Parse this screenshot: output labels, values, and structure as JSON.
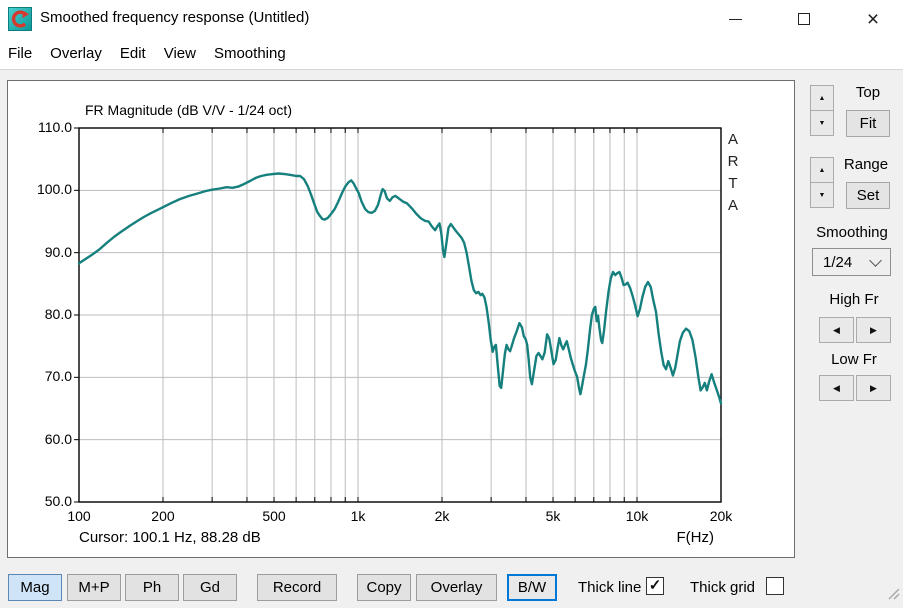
{
  "window": {
    "title": "Smoothed frequency response (Untitled)",
    "icon": "arta-app-icon"
  },
  "menu": {
    "items": [
      "File",
      "Overlay",
      "Edit",
      "View",
      "Smoothing"
    ]
  },
  "chart": {
    "title": "FR Magnitude (dB V/V - 1/24 oct)",
    "watermark": [
      "A",
      "R",
      "T",
      "A"
    ],
    "cursor_status": "Cursor: 100.1 Hz, 88.28 dB",
    "x_axis_label": "F(Hz)",
    "y_tick_labels": [
      "110.0",
      "100.0",
      "90.0",
      "80.0",
      "70.0",
      "60.0",
      "50.0"
    ],
    "x_tick_labels": [
      {
        "freq": 100,
        "label": "100"
      },
      {
        "freq": 200,
        "label": "200"
      },
      {
        "freq": 500,
        "label": "500"
      },
      {
        "freq": 1000,
        "label": "1k"
      },
      {
        "freq": 2000,
        "label": "2k"
      },
      {
        "freq": 5000,
        "label": "5k"
      },
      {
        "freq": 10000,
        "label": "10k"
      },
      {
        "freq": 20000,
        "label": "20k"
      }
    ]
  },
  "chart_data": {
    "type": "line",
    "title": "FR Magnitude (dB V/V - 1/24 oct)",
    "x_scale": "log",
    "xlim": [
      100,
      20000
    ],
    "ylim": [
      50,
      110
    ],
    "x_unit": "Hz",
    "y_unit": "dB",
    "grid": true,
    "x_gridlines": [
      200,
      300,
      400,
      500,
      600,
      700,
      800,
      900,
      1000,
      2000,
      3000,
      4000,
      5000,
      6000,
      7000,
      8000,
      9000,
      10000
    ],
    "y_gridlines": [
      60,
      70,
      80,
      90,
      100
    ],
    "series": [
      {
        "name": "FR magnitude",
        "color": "#15807d",
        "points": [
          [
            100,
            88.3
          ],
          [
            104,
            88.8
          ],
          [
            110,
            89.5
          ],
          [
            118,
            90.5
          ],
          [
            126,
            91.6
          ],
          [
            134,
            92.6
          ],
          [
            142,
            93.4
          ],
          [
            152,
            94.3
          ],
          [
            162,
            95.1
          ],
          [
            172,
            95.8
          ],
          [
            182,
            96.4
          ],
          [
            192,
            96.9
          ],
          [
            200,
            97.3
          ],
          [
            215,
            98.0
          ],
          [
            230,
            98.6
          ],
          [
            248,
            99.1
          ],
          [
            266,
            99.5
          ],
          [
            285,
            99.9
          ],
          [
            300,
            100.1
          ],
          [
            320,
            100.3
          ],
          [
            338,
            100.5
          ],
          [
            355,
            100.4
          ],
          [
            372,
            100.6
          ],
          [
            390,
            101.0
          ],
          [
            410,
            101.5
          ],
          [
            430,
            102.0
          ],
          [
            450,
            102.3
          ],
          [
            470,
            102.5
          ],
          [
            495,
            102.6
          ],
          [
            520,
            102.7
          ],
          [
            545,
            102.6
          ],
          [
            570,
            102.5
          ],
          [
            600,
            102.3
          ],
          [
            620,
            102.3
          ],
          [
            640,
            101.8
          ],
          [
            660,
            100.7
          ],
          [
            680,
            99.2
          ],
          [
            700,
            97.6
          ],
          [
            715,
            96.5
          ],
          [
            730,
            95.9
          ],
          [
            745,
            95.4
          ],
          [
            760,
            95.3
          ],
          [
            780,
            95.6
          ],
          [
            800,
            96.2
          ],
          [
            825,
            97.0
          ],
          [
            850,
            98.2
          ],
          [
            875,
            99.5
          ],
          [
            900,
            100.6
          ],
          [
            925,
            101.3
          ],
          [
            945,
            101.6
          ],
          [
            965,
            101.1
          ],
          [
            985,
            100.3
          ],
          [
            1005,
            99.6
          ],
          [
            1030,
            98.2
          ],
          [
            1060,
            97.0
          ],
          [
            1090,
            96.5
          ],
          [
            1120,
            96.4
          ],
          [
            1150,
            96.7
          ],
          [
            1180,
            97.7
          ],
          [
            1205,
            99.2
          ],
          [
            1225,
            100.2
          ],
          [
            1245,
            99.9
          ],
          [
            1270,
            98.7
          ],
          [
            1300,
            98.3
          ],
          [
            1330,
            98.9
          ],
          [
            1360,
            99.1
          ],
          [
            1400,
            98.7
          ],
          [
            1450,
            98.2
          ],
          [
            1500,
            97.9
          ],
          [
            1560,
            97.1
          ],
          [
            1620,
            96.2
          ],
          [
            1680,
            95.5
          ],
          [
            1740,
            95.1
          ],
          [
            1790,
            95.0
          ],
          [
            1840,
            94.2
          ],
          [
            1890,
            93.6
          ],
          [
            1930,
            94.3
          ],
          [
            1960,
            94.7
          ],
          [
            1990,
            93.0
          ],
          [
            2015,
            90.5
          ],
          [
            2040,
            89.3
          ],
          [
            2070,
            91.3
          ],
          [
            2110,
            94.0
          ],
          [
            2150,
            94.6
          ],
          [
            2200,
            94.0
          ],
          [
            2250,
            93.4
          ],
          [
            2300,
            92.9
          ],
          [
            2350,
            92.4
          ],
          [
            2400,
            91.6
          ],
          [
            2450,
            90.0
          ],
          [
            2500,
            87.8
          ],
          [
            2550,
            85.5
          ],
          [
            2600,
            84.0
          ],
          [
            2650,
            83.5
          ],
          [
            2700,
            83.7
          ],
          [
            2750,
            83.2
          ],
          [
            2790,
            83.4
          ],
          [
            2840,
            82.8
          ],
          [
            2890,
            81.2
          ],
          [
            2940,
            78.8
          ],
          [
            2990,
            76.0
          ],
          [
            3040,
            74.1
          ],
          [
            3080,
            74.9
          ],
          [
            3120,
            75.2
          ],
          [
            3170,
            71.8
          ],
          [
            3220,
            68.6
          ],
          [
            3260,
            68.3
          ],
          [
            3310,
            71.0
          ],
          [
            3360,
            73.8
          ],
          [
            3410,
            75.2
          ],
          [
            3460,
            74.5
          ],
          [
            3510,
            74.2
          ],
          [
            3560,
            75.1
          ],
          [
            3620,
            76.2
          ],
          [
            3700,
            77.3
          ],
          [
            3790,
            78.7
          ],
          [
            3870,
            78.0
          ],
          [
            3930,
            76.6
          ],
          [
            3990,
            76.1
          ],
          [
            4040,
            75.2
          ],
          [
            4090,
            72.8
          ],
          [
            4140,
            70.0
          ],
          [
            4200,
            68.9
          ],
          [
            4280,
            71.2
          ],
          [
            4360,
            73.4
          ],
          [
            4440,
            73.9
          ],
          [
            4510,
            73.4
          ],
          [
            4580,
            72.9
          ],
          [
            4670,
            74.0
          ],
          [
            4760,
            76.9
          ],
          [
            4850,
            76.2
          ],
          [
            4940,
            74.0
          ],
          [
            5020,
            72.1
          ],
          [
            5110,
            72.8
          ],
          [
            5190,
            74.6
          ],
          [
            5270,
            76.3
          ],
          [
            5360,
            75.1
          ],
          [
            5440,
            74.5
          ],
          [
            5520,
            75.2
          ],
          [
            5600,
            75.8
          ],
          [
            5700,
            74.4
          ],
          [
            5800,
            73.0
          ],
          [
            5900,
            71.9
          ],
          [
            6000,
            70.9
          ],
          [
            6100,
            70.1
          ],
          [
            6200,
            68.2
          ],
          [
            6270,
            67.3
          ],
          [
            6350,
            68.6
          ],
          [
            6450,
            70.3
          ],
          [
            6560,
            72.0
          ],
          [
            6670,
            74.5
          ],
          [
            6780,
            77.5
          ],
          [
            6890,
            80.0
          ],
          [
            7000,
            81.0
          ],
          [
            7090,
            81.3
          ],
          [
            7170,
            79.0
          ],
          [
            7250,
            79.9
          ],
          [
            7340,
            77.8
          ],
          [
            7440,
            75.9
          ],
          [
            7510,
            75.5
          ],
          [
            7620,
            77.6
          ],
          [
            7750,
            80.6
          ],
          [
            7900,
            83.6
          ],
          [
            8050,
            85.8
          ],
          [
            8200,
            86.9
          ],
          [
            8350,
            86.4
          ],
          [
            8500,
            86.7
          ],
          [
            8650,
            86.9
          ],
          [
            8800,
            86.0
          ],
          [
            8950,
            84.8
          ],
          [
            9100,
            84.9
          ],
          [
            9250,
            85.2
          ],
          [
            9450,
            84.3
          ],
          [
            9650,
            83.0
          ],
          [
            9850,
            81.5
          ],
          [
            10050,
            79.8
          ],
          [
            10250,
            81.0
          ],
          [
            10450,
            82.8
          ],
          [
            10700,
            84.5
          ],
          [
            10950,
            85.3
          ],
          [
            11200,
            84.5
          ],
          [
            11450,
            82.3
          ],
          [
            11700,
            80.5
          ],
          [
            11950,
            77.0
          ],
          [
            12200,
            74.2
          ],
          [
            12450,
            72.0
          ],
          [
            12700,
            71.3
          ],
          [
            12950,
            72.6
          ],
          [
            13200,
            71.5
          ],
          [
            13450,
            70.3
          ],
          [
            13700,
            71.5
          ],
          [
            13950,
            73.4
          ],
          [
            14250,
            75.8
          ],
          [
            14600,
            77.2
          ],
          [
            15000,
            77.8
          ],
          [
            15400,
            77.4
          ],
          [
            15800,
            76.0
          ],
          [
            16200,
            73.3
          ],
          [
            16600,
            70.0
          ],
          [
            16900,
            67.9
          ],
          [
            17200,
            68.4
          ],
          [
            17500,
            69.1
          ],
          [
            17800,
            67.9
          ],
          [
            18100,
            69.2
          ],
          [
            18500,
            70.5
          ],
          [
            18900,
            69.2
          ],
          [
            19300,
            68.0
          ],
          [
            19700,
            66.8
          ],
          [
            20000,
            65.8
          ]
        ]
      }
    ]
  },
  "right_panel": {
    "top_label": "Top",
    "fit_button": "Fit",
    "range_label": "Range",
    "set_button": "Set",
    "smoothing_label": "Smoothing",
    "smoothing_value": "1/24",
    "high_fr_label": "High Fr",
    "low_fr_label": "Low Fr"
  },
  "toolbar": {
    "buttons": [
      {
        "label": "Mag",
        "active": true
      },
      {
        "label": "M+P",
        "active": false
      },
      {
        "label": "Ph",
        "active": false
      },
      {
        "label": "Gd",
        "active": false
      },
      {
        "label": "Record",
        "active": false
      },
      {
        "label": "Copy",
        "active": false
      },
      {
        "label": "Overlay",
        "active": false
      },
      {
        "label": "B/W",
        "active": false,
        "focused": true
      }
    ],
    "thick_line": {
      "label": "Thick line",
      "checked": true
    },
    "thick_grid": {
      "label": "Thick grid",
      "checked": false
    }
  },
  "colors": {
    "curve": "#15807d",
    "grid": "#bdbdbd",
    "plot_border": "#000000",
    "panel_bg": "#f0f0f0",
    "active_button_bg": "#cfe4f7",
    "focus_border": "#0078d7"
  }
}
